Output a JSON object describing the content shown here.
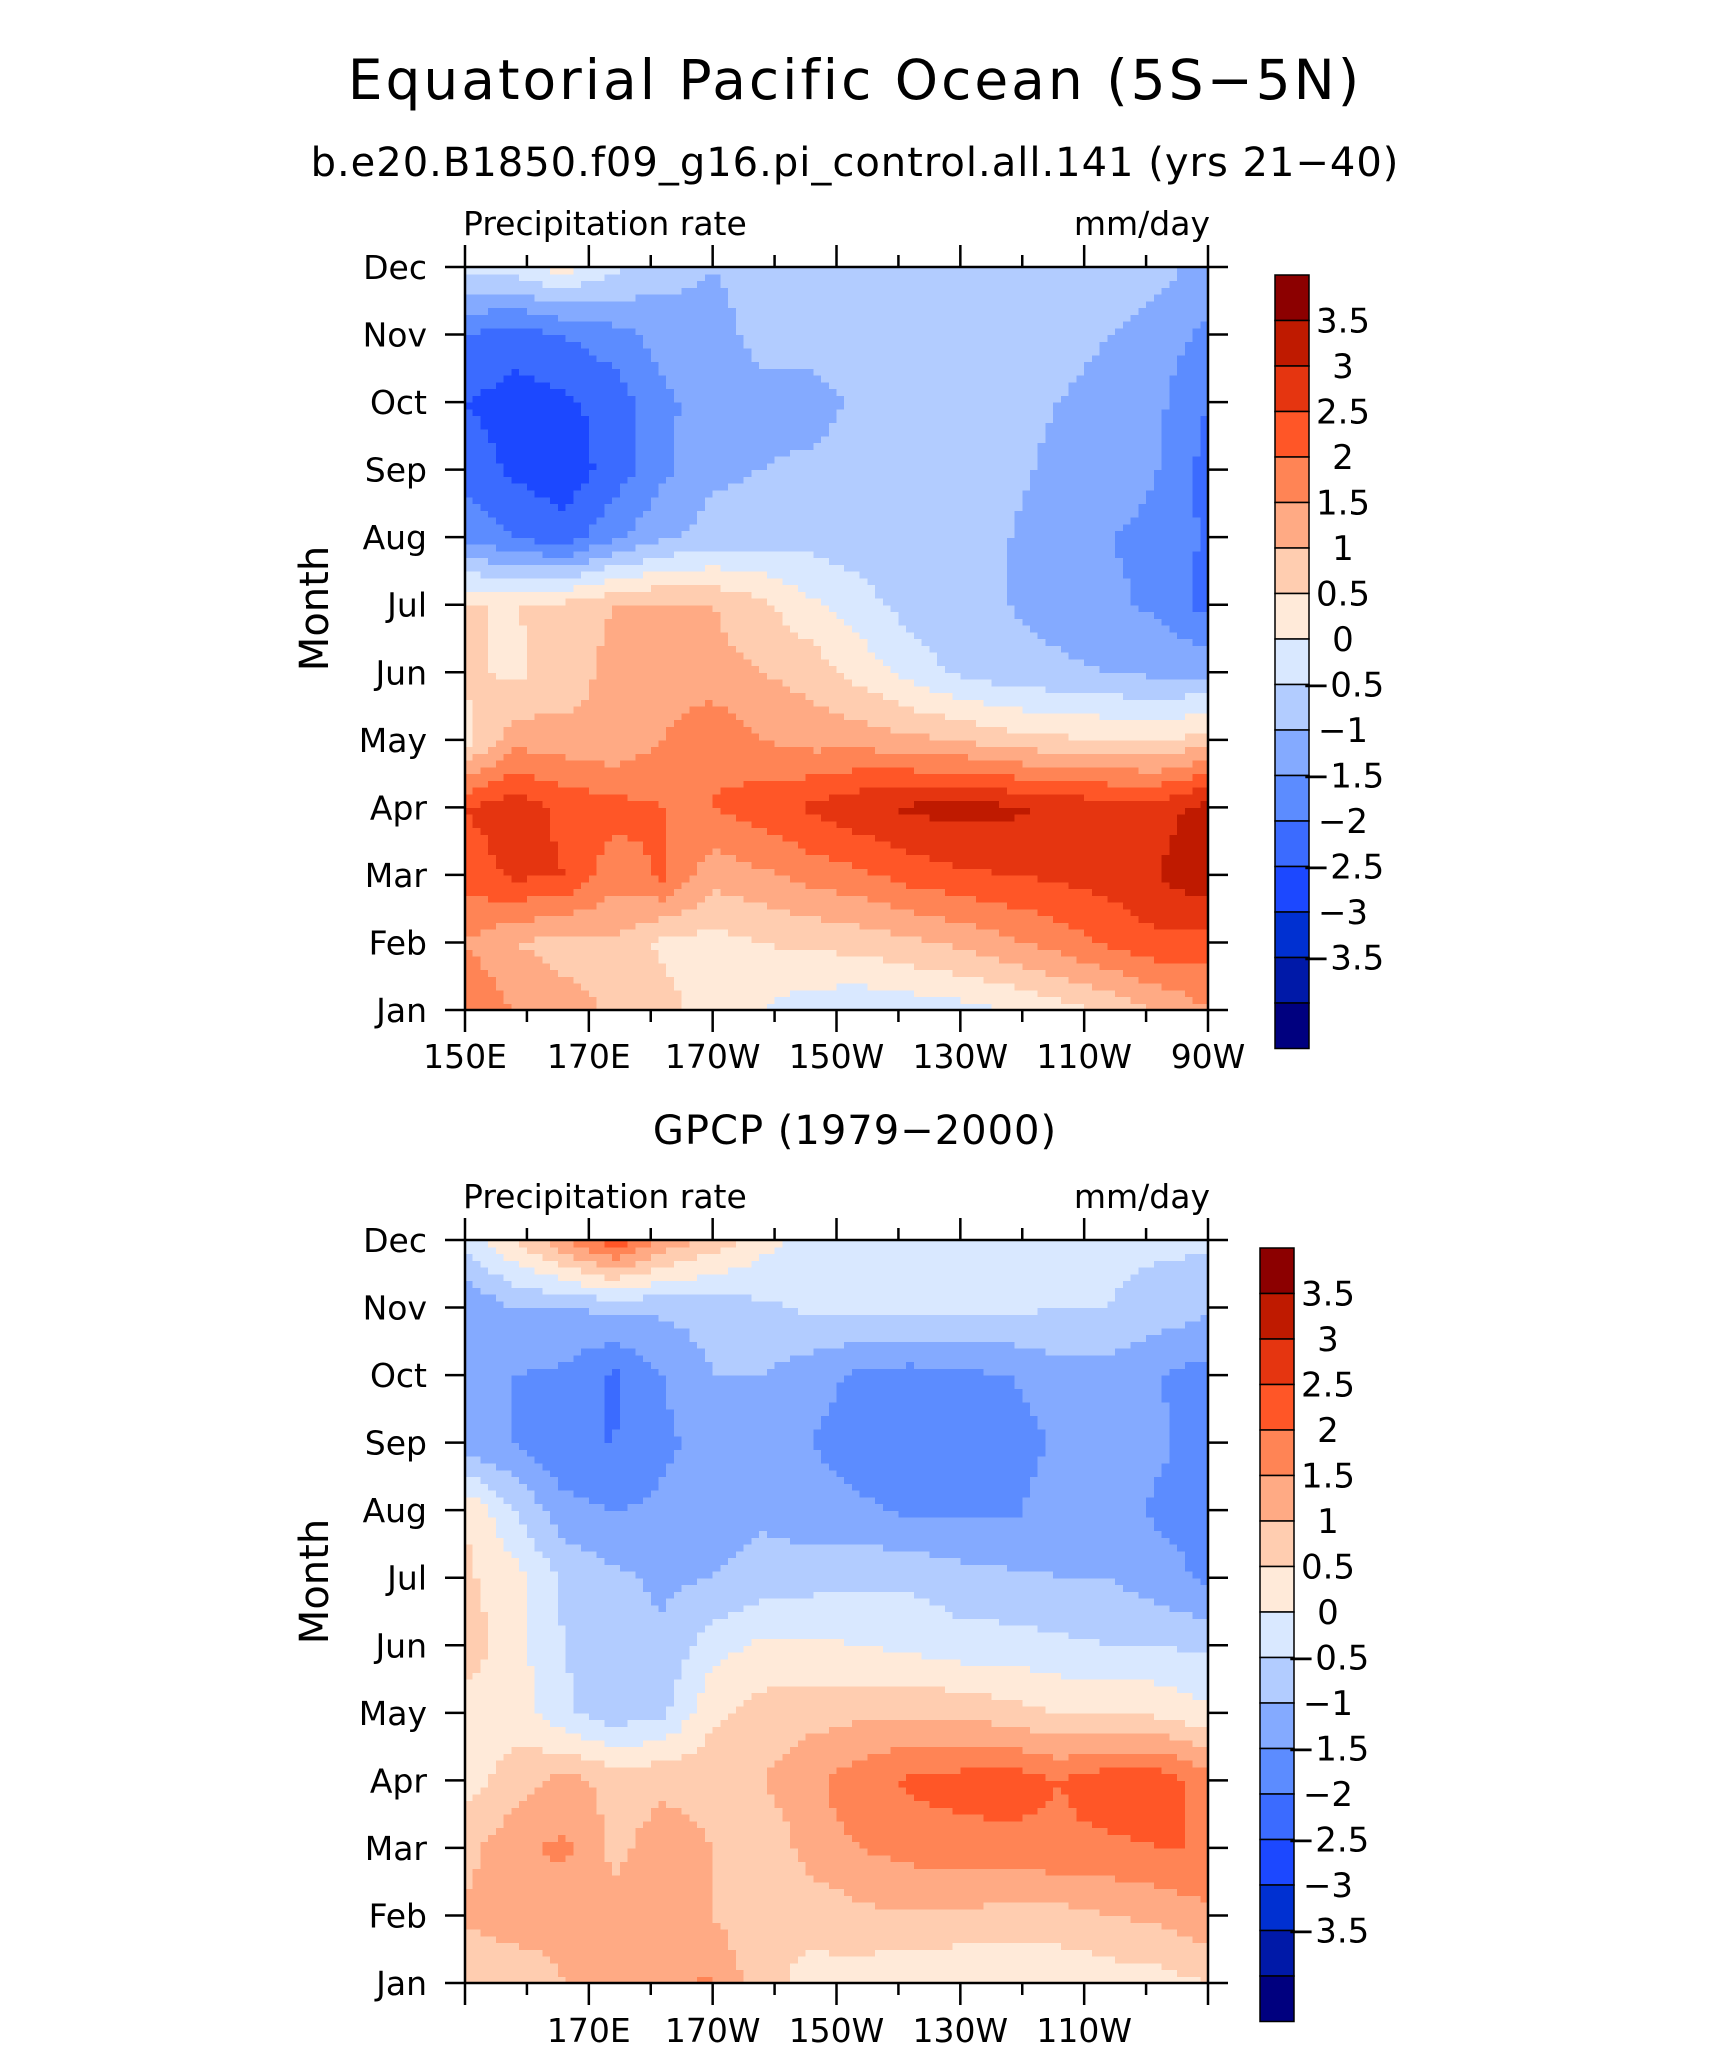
{
  "main_title": "Equatorial Pacific Ocean (5S−5N)",
  "subtitle": "b.e20.B1850.f09_g16.pi_control.all.141 (yrs 21−40)",
  "colors": [
    "#00007f",
    "#0019a8",
    "#0030d1",
    "#1c48ff",
    "#3b6bff",
    "#5c8cff",
    "#84aaff",
    "#b2ccff",
    "#d9e8ff",
    "#ffead9",
    "#ffcdb0",
    "#ffaa84",
    "#ff8455",
    "#ff5627",
    "#e53510",
    "#bf1a00",
    "#8c0000"
  ],
  "chart_data": [
    {
      "type": "heatmap",
      "panel_title": "",
      "left_label": "Precipitation rate",
      "right_label": "mm/day",
      "ylabel": "Month",
      "months": [
        "Jan",
        "Feb",
        "Mar",
        "Apr",
        "May",
        "Jun",
        "Jul",
        "Aug",
        "Sep",
        "Oct",
        "Nov",
        "Dec"
      ],
      "x_tick_labels": [
        "150E",
        "170E",
        "170W",
        "150W",
        "130W",
        "110W",
        "90W"
      ],
      "levels": [
        "3.5",
        "3",
        "2.5",
        "2",
        "1.5",
        "1",
        "0.5",
        "0",
        "−0.5",
        "−1",
        "−1.5",
        "−2",
        "−2.5",
        "−3",
        "−3.5"
      ],
      "lon_range": [
        "150E",
        "90W"
      ],
      "values": [
        [
          2.0,
          1.5,
          1.2,
          0.9,
          0.7,
          0.2,
          0.0,
          -0.3,
          -0.4,
          -0.3,
          -0.2,
          0.0,
          0.3,
          0.6,
          1.0,
          1.5
        ],
        [
          1.5,
          1.0,
          0.8,
          0.9,
          0.4,
          0.3,
          0.5,
          0.6,
          0.7,
          0.9,
          1.1,
          1.4,
          1.7,
          2.1,
          2.4,
          2.2
        ],
        [
          2.2,
          2.6,
          2.5,
          1.7,
          2.1,
          1.2,
          1.4,
          1.7,
          1.9,
          2.2,
          2.4,
          2.5,
          2.6,
          2.7,
          3.0,
          3.4
        ],
        [
          2.5,
          2.8,
          2.4,
          2.2,
          2.0,
          2.0,
          2.3,
          2.6,
          2.9,
          3.1,
          3.2,
          3.1,
          2.9,
          2.8,
          2.8,
          3.2
        ],
        [
          0.3,
          1.3,
          1.2,
          1.1,
          1.5,
          1.9,
          1.5,
          1.3,
          1.3,
          1.1,
          1.0,
          0.7,
          0.6,
          0.5,
          0.4,
          0.8
        ],
        [
          0.6,
          0.4,
          0.7,
          1.2,
          1.3,
          1.2,
          1.0,
          0.8,
          0.3,
          -0.2,
          -0.6,
          -0.8,
          -0.9,
          -1.0,
          -1.1,
          -1.1
        ],
        [
          0.5,
          0.5,
          0.6,
          1.0,
          1.1,
          1.0,
          0.6,
          0.1,
          -0.3,
          -0.7,
          -0.9,
          -1.0,
          -1.2,
          -1.4,
          -1.6,
          -2.2
        ],
        [
          -1.6,
          -2.0,
          -2.3,
          -1.6,
          -1.1,
          -0.8,
          -0.7,
          -0.7,
          -0.8,
          -0.9,
          -1.0,
          -1.0,
          -1.3,
          -1.5,
          -1.6,
          -2.1
        ],
        [
          -2.2,
          -2.6,
          -2.8,
          -2.3,
          -1.6,
          -1.1,
          -1.0,
          -0.9,
          -0.8,
          -0.8,
          -0.8,
          -0.9,
          -1.1,
          -1.3,
          -1.5,
          -2.2
        ],
        [
          -2.5,
          -2.7,
          -2.6,
          -2.3,
          -1.6,
          -1.3,
          -1.1,
          -1.2,
          -0.9,
          -0.8,
          -0.8,
          -0.9,
          -1.0,
          -1.2,
          -1.4,
          -2.0
        ],
        [
          -2.0,
          -2.3,
          -2.0,
          -1.7,
          -1.3,
          -1.1,
          -0.9,
          -0.8,
          -0.7,
          -0.6,
          -0.6,
          -0.7,
          -0.8,
          -1.0,
          -1.3,
          -1.6
        ],
        [
          -0.4,
          -0.2,
          0.2,
          -0.4,
          -0.8,
          -1.0,
          -0.9,
          -0.9,
          -0.8,
          -0.8,
          -0.8,
          -0.8,
          -0.8,
          -0.6,
          -0.8,
          -1.2
        ]
      ]
    },
    {
      "type": "heatmap",
      "panel_title": "GPCP (1979−2000)",
      "left_label": "Precipitation rate",
      "right_label": "mm/day",
      "ylabel": "Month",
      "months": [
        "Jan",
        "Feb",
        "Mar",
        "Apr",
        "May",
        "Jun",
        "Jul",
        "Aug",
        "Sep",
        "Oct",
        "Nov",
        "Dec"
      ],
      "x_tick_labels": [
        "170E",
        "170W",
        "150W",
        "130W",
        "110W"
      ],
      "levels": [
        "3.5",
        "3",
        "2.5",
        "2",
        "1.5",
        "1",
        "0.5",
        "0",
        "−0.5",
        "−1",
        "−1.5",
        "−2",
        "−2.5",
        "−3",
        "−3.5"
      ],
      "lon_range": [
        "150E",
        "90W"
      ],
      "values": [
        [
          0.5,
          0.6,
          1.0,
          1.1,
          1.3,
          1.6,
          0.6,
          0.4,
          0.2,
          0.1,
          0.0,
          0.0,
          0.1,
          0.2,
          0.3,
          0.5
        ],
        [
          1.1,
          1.3,
          1.2,
          1.1,
          1.3,
          1.0,
          0.5,
          0.6,
          0.9,
          0.9,
          0.9,
          0.8,
          0.8,
          1.0,
          1.1,
          1.4
        ],
        [
          0.8,
          1.4,
          1.6,
          0.9,
          1.2,
          1.0,
          0.5,
          1.3,
          1.5,
          1.7,
          1.8,
          1.8,
          1.9,
          1.9,
          2.0,
          2.0
        ],
        [
          0.3,
          0.7,
          1.2,
          0.8,
          0.9,
          0.9,
          1.0,
          1.4,
          1.8,
          2.1,
          2.2,
          2.3,
          2.0,
          2.3,
          2.3,
          1.8
        ],
        [
          0.2,
          0.3,
          -0.4,
          -0.8,
          -0.6,
          0.4,
          0.7,
          0.8,
          0.9,
          0.9,
          0.9,
          0.7,
          0.5,
          0.5,
          0.4,
          0.1
        ],
        [
          0.8,
          0.2,
          -0.5,
          -0.8,
          -0.9,
          -0.2,
          0.1,
          0.1,
          0.0,
          -0.1,
          -0.3,
          -0.3,
          -0.4,
          -0.5,
          -0.5,
          -0.6
        ],
        [
          0.6,
          0.2,
          -0.6,
          -0.9,
          -1.1,
          -1.0,
          -0.8,
          -0.7,
          -0.6,
          -0.6,
          -0.8,
          -0.9,
          -1.0,
          -1.0,
          -1.3,
          -1.6
        ],
        [
          0.5,
          -0.5,
          -1.3,
          -1.5,
          -1.4,
          -1.3,
          -1.1,
          -1.3,
          -1.4,
          -1.6,
          -1.6,
          -1.6,
          -1.2,
          -1.2,
          -1.6,
          -1.6
        ],
        [
          -1.3,
          -1.5,
          -2.0,
          -2.0,
          -1.6,
          -1.3,
          -1.2,
          -1.5,
          -1.8,
          -1.8,
          -1.8,
          -1.8,
          -1.4,
          -1.1,
          -1.4,
          -1.8
        ],
        [
          -1.3,
          -1.5,
          -1.6,
          -2.1,
          -1.5,
          -1.0,
          -1.0,
          -1.3,
          -1.6,
          -1.7,
          -1.6,
          -1.5,
          -1.2,
          -1.2,
          -1.5,
          -1.7
        ],
        [
          -1.5,
          -1.0,
          -1.0,
          -0.9,
          -0.9,
          -0.8,
          -0.6,
          -0.4,
          -0.4,
          -0.4,
          -0.4,
          -0.4,
          -0.5,
          -0.5,
          -0.7,
          -0.9
        ],
        [
          -0.3,
          0.5,
          1.4,
          2.4,
          1.4,
          0.8,
          0.2,
          -0.3,
          -0.3,
          -0.3,
          -0.4,
          -0.4,
          -0.4,
          -0.4,
          -0.4,
          -0.4
        ]
      ]
    }
  ]
}
